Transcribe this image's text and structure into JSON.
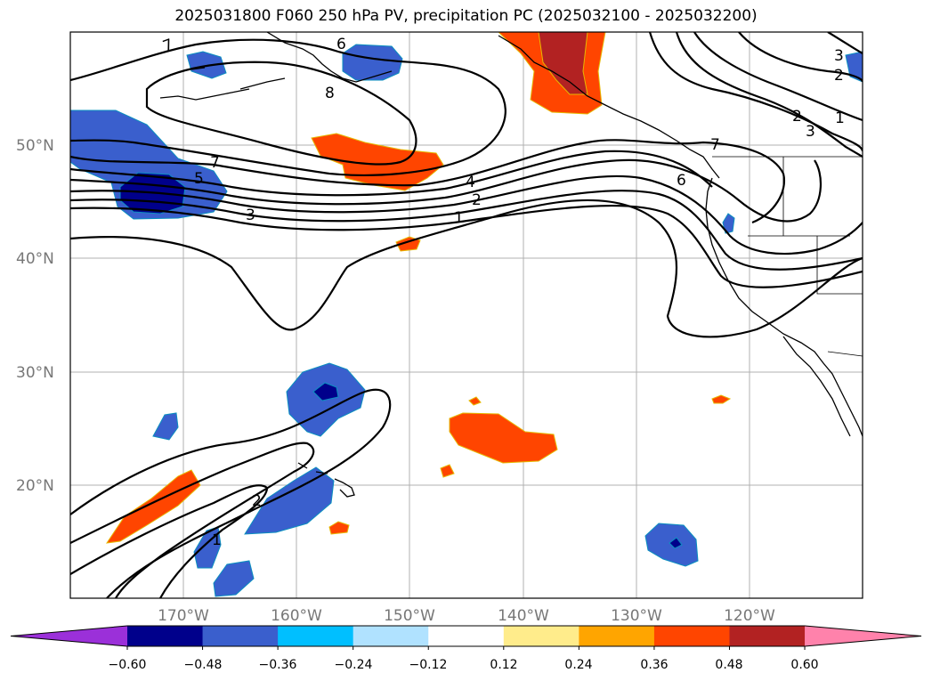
{
  "title": "2025031800 F060 250 hPa PV, precipitation PC (2025032100 - 2025032200)",
  "map": {
    "lat_labels": [
      "50°N",
      "40°N",
      "30°N",
      "20°N"
    ],
    "lon_labels": [
      "170°W",
      "160°W",
      "150°W",
      "140°W",
      "130°W",
      "120°W"
    ],
    "contour_labels": [
      "7",
      "6",
      "8",
      "5",
      "7",
      "3",
      "4",
      "2",
      "1",
      "6",
      "7",
      "2",
      "3",
      "1",
      "3",
      "2",
      "2",
      "1"
    ]
  },
  "colorbar": {
    "tick_labels": [
      "−0.60",
      "−0.48",
      "−0.36",
      "−0.24",
      "−0.12",
      "0.12",
      "0.24",
      "0.36",
      "0.48",
      "0.60"
    ],
    "colors": [
      "#9b30d9",
      "#00008b",
      "#3a5fcd",
      "#00bfff",
      "#b0e2ff",
      "#ffffff",
      "#ffec8b",
      "#ffa500",
      "#ff4500",
      "#b22222",
      "#ff82ab"
    ]
  }
}
